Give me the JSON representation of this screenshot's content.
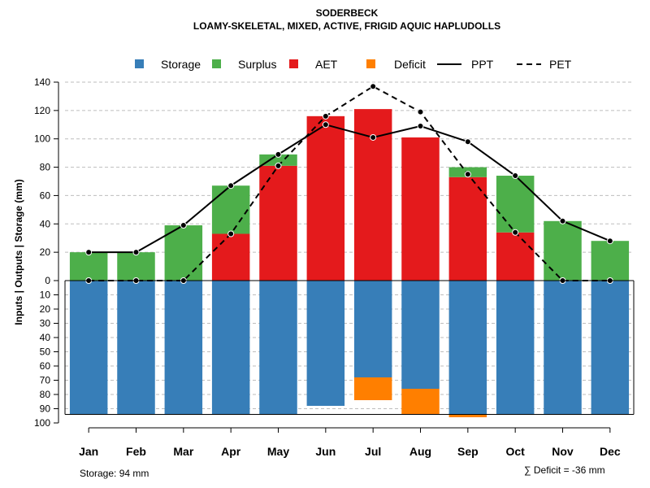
{
  "chart_data": {
    "type": "bar",
    "title": "SODERBECK",
    "subtitle": "LOAMY-SKELETAL, MIXED, ACTIVE, FRIGID AQUIC HAPLUDOLLS",
    "ylabel": "Inputs | Outputs | Storage    (mm)",
    "categories": [
      "Jan",
      "Feb",
      "Mar",
      "Apr",
      "May",
      "Jun",
      "Jul",
      "Aug",
      "Sep",
      "Oct",
      "Nov",
      "Dec"
    ],
    "upper_ylim": [
      0,
      140
    ],
    "upper_ticks": [
      0,
      20,
      40,
      60,
      80,
      100,
      120,
      140
    ],
    "lower_ylim": [
      0,
      100
    ],
    "lower_ticks": [
      0,
      10,
      20,
      30,
      40,
      50,
      60,
      70,
      80,
      90,
      100
    ],
    "grid": true,
    "legend_position": "top",
    "series": [
      {
        "name": "Storage",
        "color": "#377EB8",
        "values": [
          94,
          94,
          94,
          94,
          94,
          88,
          68,
          76,
          94,
          94,
          94,
          94
        ]
      },
      {
        "name": "Surplus",
        "color": "#4DAF4A",
        "values": [
          20,
          20,
          39,
          34,
          8,
          0,
          0,
          0,
          7,
          40,
          42,
          28
        ]
      },
      {
        "name": "AET",
        "color": "#E41A1C",
        "values": [
          0,
          0,
          0,
          33,
          81,
          116,
          121,
          101,
          73,
          34,
          0,
          0
        ]
      },
      {
        "name": "Deficit",
        "color": "#FF7F00",
        "values": [
          0,
          0,
          0,
          0,
          0,
          0,
          16,
          18,
          2,
          0,
          0,
          0
        ]
      },
      {
        "name": "PPT",
        "line_style": "solid",
        "values": [
          20,
          20,
          39,
          67,
          89,
          110,
          101,
          109,
          98,
          74,
          42,
          28
        ]
      },
      {
        "name": "PET",
        "line_style": "dashed",
        "values": [
          0,
          0,
          0,
          33,
          81,
          116,
          137,
          119,
          75,
          34,
          0,
          0
        ]
      }
    ],
    "storage_capacity": 94,
    "storage_note": "Storage: 94 mm",
    "deficit_note": "∑ Deficit = -36 mm"
  }
}
